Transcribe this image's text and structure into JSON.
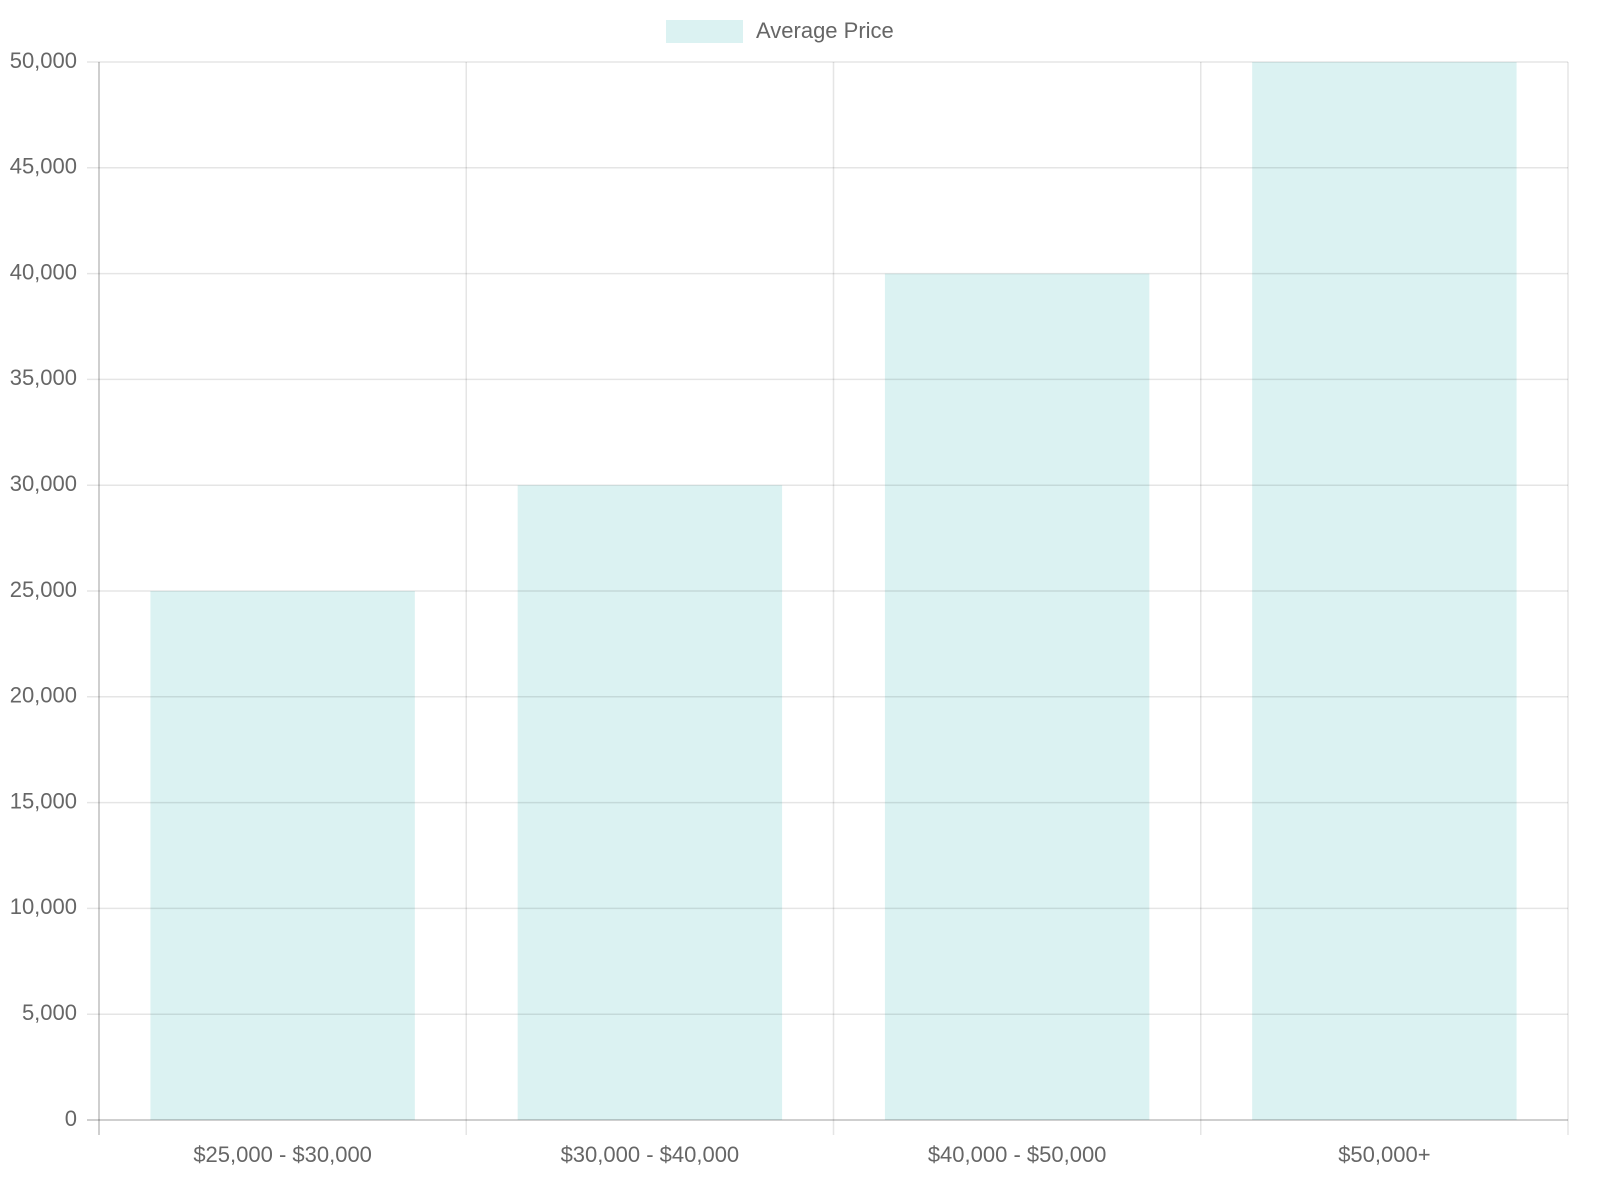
{
  "chart_data": {
    "type": "bar",
    "categories": [
      "$25,000 - $30,000",
      "$30,000 - $40,000",
      "$40,000 - $50,000",
      "$50,000+"
    ],
    "series": [
      {
        "name": "Average Price",
        "color": "rgba(75,192,192,0.2)",
        "values": [
          25000,
          30000,
          40000,
          50000
        ]
      }
    ],
    "ylim": [
      0,
      50000
    ],
    "yticks": [
      0,
      {
        "value": 5000,
        "label": "5,000"
      },
      {
        "value": 10000,
        "label": "10,000"
      },
      {
        "value": 15000,
        "label": "15,000"
      },
      {
        "value": 20000,
        "label": "20,000"
      },
      {
        "value": 25000,
        "label": "25,000"
      },
      {
        "value": 30000,
        "label": "30,000"
      },
      {
        "value": 35000,
        "label": "35,000"
      },
      {
        "value": 40000,
        "label": "40,000"
      },
      {
        "value": 45000,
        "label": "45,000"
      },
      {
        "value": 50000,
        "label": "50,000"
      }
    ],
    "grid": true,
    "legend": "top"
  }
}
